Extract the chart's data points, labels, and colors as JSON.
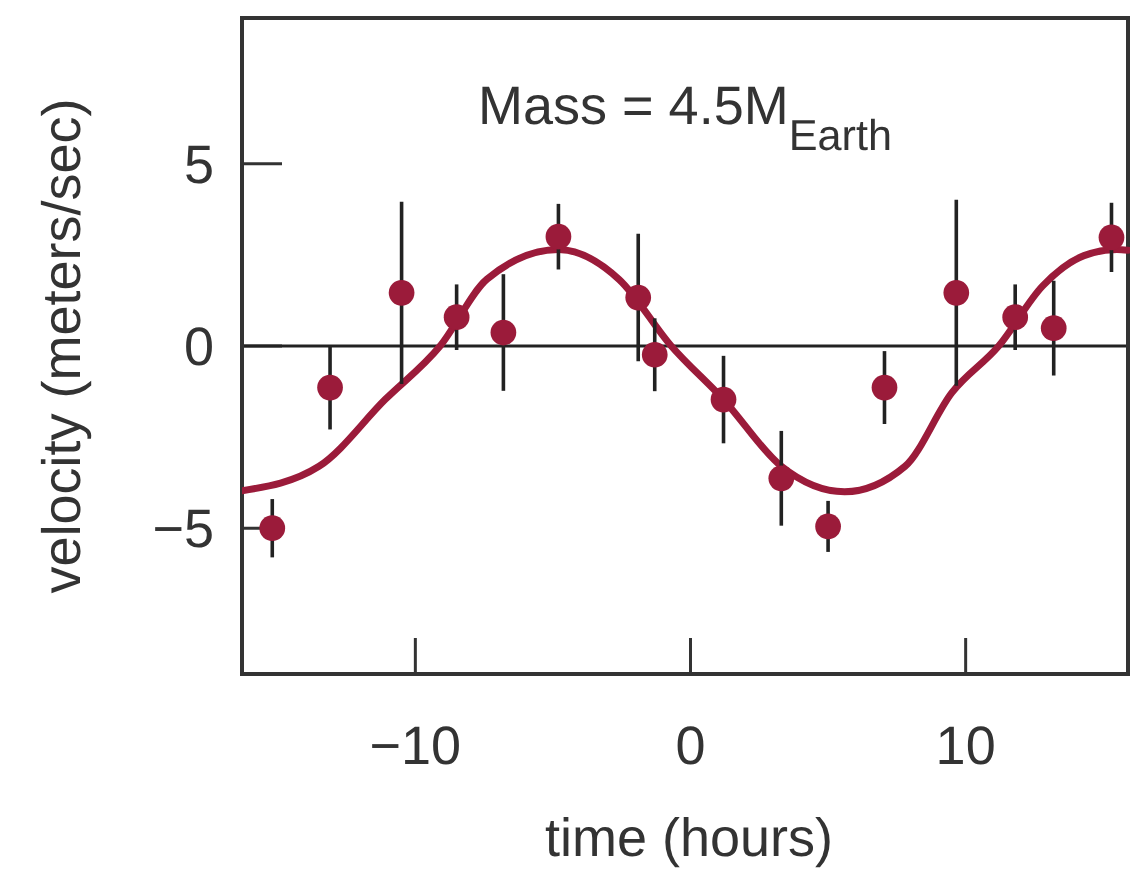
{
  "chart_data": {
    "type": "scatter",
    "xlabel": "time (hours)",
    "ylabel": "velocity (meters/sec)",
    "annotations": [
      "Mass = 4.5M$_{Earth}$"
    ],
    "xlim": [
      -16.3,
      15.9
    ],
    "ylim": [
      -9,
      9
    ],
    "xticks": [
      {
        "value": -10,
        "label": "−10"
      },
      0,
      10
    ],
    "yticks": [
      {
        "value": -5,
        "label": "−5"
      },
      0,
      5
    ],
    "marker": "circle",
    "ref_lines": [
      {
        "axis": "y",
        "value": 0,
        "color": "#222222"
      }
    ],
    "series": [
      {
        "type": "line",
        "marker": "none",
        "color": "#9b1b3a",
        "x": [
          -16.3,
          -13.5,
          -11.1,
          -9.1,
          -7.4,
          -4.8,
          -2.6,
          -0.7,
          1.2,
          3.3,
          5.6,
          7.8,
          9.5,
          11.2,
          12.8,
          14.3,
          15.5,
          15.9
        ],
        "values": [
          -3.97,
          -3.3,
          -1.47,
          0,
          1.83,
          2.65,
          1.83,
          0,
          -1.47,
          -3.3,
          -4.0,
          -3.3,
          -1.28,
          0,
          1.65,
          2.48,
          2.65,
          2.63
        ]
      },
      {
        "color": "#9b1b3a",
        "x": [
          -15.2,
          -13.1,
          -10.5,
          -8.5,
          -6.8,
          -4.8,
          -1.9,
          -1.3,
          1.2,
          3.3,
          5.0,
          7.05,
          9.66,
          11.8,
          13.2,
          15.3
        ],
        "values": [
          -5.0,
          -1.14,
          1.46,
          0.79,
          0.37,
          3.0,
          1.33,
          -0.24,
          -1.47,
          -3.63,
          -4.95,
          -1.14,
          1.46,
          0.79,
          0.49,
          2.98
        ],
        "errors": [
          0.8,
          1.15,
          2.5,
          0.9,
          1.6,
          0.9,
          1.75,
          1.0,
          1.2,
          1.3,
          0.7,
          1.0,
          2.55,
          0.9,
          1.3,
          0.95
        ]
      }
    ]
  }
}
